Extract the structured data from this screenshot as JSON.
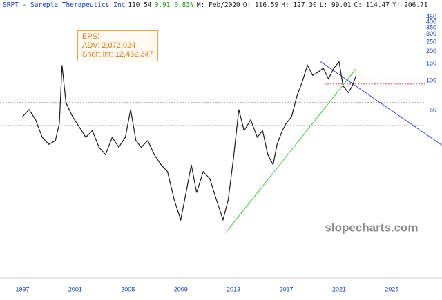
{
  "header": [
    "SRPT - Sarepta Therapeutics Inc",
    "110.54",
    "0.91 0.83%",
    "M: Feb/2020",
    "O: 116.59",
    "H: 127.30",
    "L: 99.01",
    "C: 114.47",
    "Y: 206.71"
  ],
  "info": [
    "EPS:",
    "ADV: 2,072,024",
    "Short Int: 12,432,347"
  ],
  "watermark": "slopecharts.com",
  "chart_data": {
    "type": "line",
    "log_scale": true,
    "series": [
      {
        "color": "#1a1a1a",
        "x": [
          1997.0,
          1997.5,
          1998.0,
          1998.5,
          1999.0,
          1999.5,
          1999.8,
          2000.0,
          2000.3,
          2000.8,
          2001.3,
          2001.8,
          2002.3,
          2002.8,
          2003.3,
          2003.8,
          2004.3,
          2004.8,
          2005.2,
          2005.6,
          2006.0,
          2006.5,
          2007.0,
          2007.5,
          2008.0,
          2008.5,
          2009.0,
          2009.4,
          2009.8,
          2010.2,
          2010.7,
          2011.2,
          2011.7,
          2012.2,
          2012.6,
          2013.0,
          2013.4,
          2013.8,
          2014.3,
          2014.8,
          2015.2,
          2015.6,
          2016.0,
          2016.3,
          2016.7,
          2017.0,
          2017.4,
          2017.8,
          2018.2,
          2018.6,
          2019.0,
          2019.4,
          2019.8,
          2020.2,
          2020.6,
          2021.0,
          2021.3,
          2021.7,
          2022.0,
          2022.3
        ],
        "values": [
          43,
          51,
          40,
          26.5,
          22.5,
          24.5,
          37,
          145,
          60,
          43,
          34,
          26.5,
          31,
          21,
          17.6,
          26.5,
          21,
          26.5,
          51,
          24.5,
          21,
          24.5,
          17.6,
          13.9,
          11.8,
          6.1,
          3.8,
          7.2,
          13.9,
          7.2,
          11.8,
          10,
          6.1,
          3.8,
          6.1,
          16.3,
          51,
          31,
          40,
          26.5,
          31,
          17.6,
          13.9,
          22.5,
          31,
          37,
          43,
          70,
          97,
          145,
          114,
          123,
          135,
          105,
          135,
          157,
          89,
          76,
          89,
          114
        ]
      }
    ],
    "lines": [
      {
        "color": "#33cc33",
        "x": [
          2012.4,
          2022.3
        ],
        "y": [
          2.8,
          134
        ]
      },
      {
        "color": "#3344dd",
        "x": [
          2019.6,
          2028.8
        ],
        "y": [
          157,
          22
        ]
      }
    ],
    "levels": [
      {
        "value": 152,
        "color": "#999999"
      },
      {
        "value": 105,
        "color": "#33aa33"
      },
      {
        "value": 93,
        "color": "#dd4444"
      },
      {
        "value": 60,
        "color": "#999999"
      },
      {
        "value": 35,
        "color": "#999999"
      }
    ],
    "xlim": [
      1995.3,
      2028.8
    ],
    "xticks": [
      1997,
      2001,
      2005,
      2009,
      2013,
      2017,
      2021,
      2025
    ],
    "ylim": [
      1.1,
      620
    ],
    "yticks": [
      50,
      100,
      150,
      200,
      250,
      300,
      350,
      400,
      450
    ]
  }
}
